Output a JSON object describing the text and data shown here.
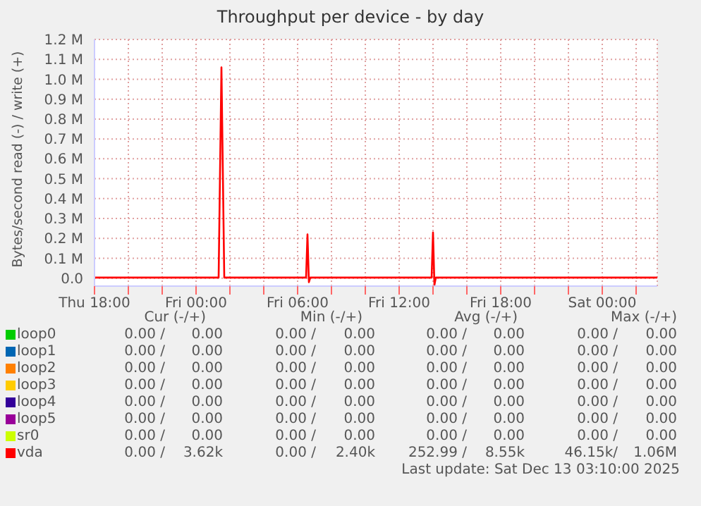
{
  "chart_data": {
    "type": "line",
    "title": "Throughput per device - by day",
    "ylabel": "Bytes/second read (-) / write (+)",
    "xlim": [
      "2025-12-11T18:00",
      "2025-12-13T03:15"
    ],
    "xticks": [
      {
        "value": "2025-12-11T18:00",
        "label": "Thu 18:00"
      },
      {
        "value": "2025-12-11T20:00",
        "label": null
      },
      {
        "value": "2025-12-11T22:00",
        "label": null
      },
      {
        "value": "2025-12-12T00:00",
        "label": "Fri 00:00"
      },
      {
        "value": "2025-12-12T02:00",
        "label": null
      },
      {
        "value": "2025-12-12T04:00",
        "label": null
      },
      {
        "value": "2025-12-12T06:00",
        "label": "Fri 06:00"
      },
      {
        "value": "2025-12-12T08:00",
        "label": null
      },
      {
        "value": "2025-12-12T10:00",
        "label": null
      },
      {
        "value": "2025-12-12T12:00",
        "label": "Fri 12:00"
      },
      {
        "value": "2025-12-12T14:00",
        "label": null
      },
      {
        "value": "2025-12-12T16:00",
        "label": null
      },
      {
        "value": "2025-12-12T18:00",
        "label": "Fri 18:00"
      },
      {
        "value": "2025-12-12T20:00",
        "label": null
      },
      {
        "value": "2025-12-12T22:00",
        "label": null
      },
      {
        "value": "2025-12-13T00:00",
        "label": "Sat 00:00"
      },
      {
        "value": "2025-12-13T02:00",
        "label": null
      }
    ],
    "ylim": [
      -0.04,
      1.2
    ],
    "yticks": [
      {
        "value": 0,
        "label": "0.0"
      },
      {
        "value": 0.1,
        "label": "0.1 M"
      },
      {
        "value": 0.2,
        "label": "0.2 M"
      },
      {
        "value": 0.3,
        "label": "0.3 M"
      },
      {
        "value": 0.4,
        "label": "0.4 M"
      },
      {
        "value": 0.5,
        "label": "0.5 M"
      },
      {
        "value": 0.6,
        "label": "0.6 M"
      },
      {
        "value": 0.7,
        "label": "0.7 M"
      },
      {
        "value": 0.8,
        "label": "0.8 M"
      },
      {
        "value": 0.9,
        "label": "0.9 M"
      },
      {
        "value": 1.0,
        "label": "1.0 M"
      },
      {
        "value": 1.1,
        "label": "1.1 M"
      },
      {
        "value": 1.2,
        "label": "1.2 M"
      }
    ],
    "grid": true,
    "legend": "bottom",
    "marker": "none",
    "line_style": "solid",
    "series": [
      {
        "name": "loop0",
        "color": "#00cc00"
      },
      {
        "name": "loop1",
        "color": "#0066b3"
      },
      {
        "name": "loop2",
        "color": "#ff8000"
      },
      {
        "name": "loop3",
        "color": "#ffcc00"
      },
      {
        "name": "loop4",
        "color": "#330099"
      },
      {
        "name": "loop5",
        "color": "#990099"
      },
      {
        "name": "sr0",
        "color": "#ccff00"
      },
      {
        "name": "vda",
        "color": "#ff0000",
        "x": [
          "2025-12-11T18:00",
          "2025-12-12T01:20",
          "2025-12-12T01:30",
          "2025-12-12T01:40",
          "2025-12-12T06:30",
          "2025-12-12T06:35",
          "2025-12-12T06:40",
          "2025-12-12T06:45",
          "2025-12-12T13:55",
          "2025-12-12T14:00",
          "2025-12-12T14:05",
          "2025-12-12T14:10",
          "2025-12-13T03:15"
        ],
        "values": [
          0.003,
          0.003,
          1.06,
          0.003,
          0.003,
          0.22,
          -0.02,
          0.003,
          0.003,
          0.23,
          -0.035,
          0.003,
          0.003
        ]
      }
    ],
    "annotations": [
      "Cur (-/+)",
      "Min (-/+)",
      "Avg (-/+)",
      "Max (-/+)",
      "0.00 /",
      "0.00",
      "0.00 /",
      "0.00",
      "0.00 /",
      "0.00",
      "0.00 /",
      "0.00",
      "0.00 /",
      "0.00",
      "0.00 /",
      "0.00",
      "0.00 /",
      "0.00",
      "0.00 /",
      "0.00",
      "0.00 /",
      "0.00",
      "0.00 /",
      "0.00",
      "0.00 /",
      "0.00",
      "0.00 /",
      "0.00",
      "0.00 /",
      "0.00",
      "0.00 /",
      "0.00",
      "0.00 /",
      "0.00",
      "0.00 /",
      "0.00",
      "0.00 /",
      "0.00",
      "0.00 /",
      "0.00",
      "0.00 /",
      "0.00",
      "0.00 /",
      "0.00",
      "0.00 /",
      "0.00",
      "0.00 /",
      "0.00",
      "0.00 /",
      "0.00",
      "0.00 /",
      "0.00",
      "0.00 /",
      "0.00",
      "0.00 /",
      "0.00",
      "0.00 /",
      "0.00",
      "0.00 /",
      "0.00",
      "0.00 /",
      "3.62k",
      "0.00 /",
      "2.40k",
      "252.99 /",
      "8.55k",
      "46.15k/",
      "1.06M",
      "Last update: Sat Dec 13 03:10:00 2025"
    ]
  }
}
